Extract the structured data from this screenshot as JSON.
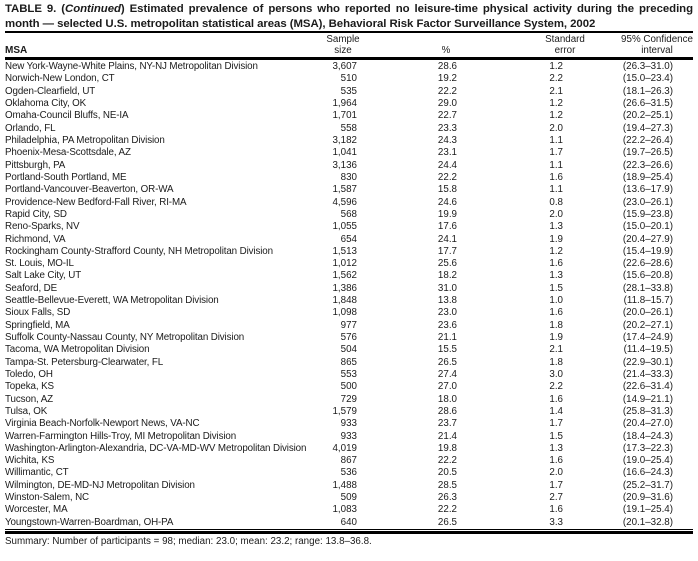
{
  "title": {
    "line1_prefix": "TABLE 9. (",
    "line1_continued": "Continued",
    "line1_rest": ") Estimated prevalence of persons who reported no leisure-time physical activity during the preceding",
    "line2": "month — selected U.S. metropolitan statistical areas (MSA), Behavioral Risk Factor Surveillance System, 2002"
  },
  "header": {
    "msa": "MSA",
    "sample_line1": "Sample",
    "sample_line2": "size",
    "pct": "%",
    "se_line1": "Standard",
    "se_line2": "error",
    "ci_line1": "95% Confidence",
    "ci_line2": "interval"
  },
  "table": {
    "rows": [
      {
        "msa": "New York-Wayne-White Plains, NY-NJ Metropolitan Division",
        "sample": "3,607",
        "pct": "28.6",
        "se": "1.2",
        "ci": "(26.3–31.0)"
      },
      {
        "msa": "Norwich-New London, CT",
        "sample": "510",
        "pct": "19.2",
        "se": "2.2",
        "ci": "(15.0–23.4)"
      },
      {
        "msa": "Ogden-Clearfield, UT",
        "sample": "535",
        "pct": "22.2",
        "se": "2.1",
        "ci": "(18.1–26.3)"
      },
      {
        "msa": "Oklahoma City, OK",
        "sample": "1,964",
        "pct": "29.0",
        "se": "1.2",
        "ci": "(26.6–31.5)"
      },
      {
        "msa": "Omaha-Council Bluffs, NE-IA",
        "sample": "1,701",
        "pct": "22.7",
        "se": "1.2",
        "ci": "(20.2–25.1)"
      },
      {
        "msa": "Orlando, FL",
        "sample": "558",
        "pct": "23.3",
        "se": "2.0",
        "ci": "(19.4–27.3)"
      },
      {
        "msa": "Philadelphia, PA Metropolitan Division",
        "sample": "3,182",
        "pct": "24.3",
        "se": "1.1",
        "ci": "(22.2–26.4)"
      },
      {
        "msa": "Phoenix-Mesa-Scottsdale, AZ",
        "sample": "1,041",
        "pct": "23.1",
        "se": "1.7",
        "ci": "(19.7–26.5)"
      },
      {
        "msa": "Pittsburgh, PA",
        "sample": "3,136",
        "pct": "24.4",
        "se": "1.1",
        "ci": "(22.3–26.6)"
      },
      {
        "msa": "Portland-South Portland, ME",
        "sample": "830",
        "pct": "22.2",
        "se": "1.6",
        "ci": "(18.9–25.4)"
      },
      {
        "msa": "Portland-Vancouver-Beaverton, OR-WA",
        "sample": "1,587",
        "pct": "15.8",
        "se": "1.1",
        "ci": "(13.6–17.9)"
      },
      {
        "msa": "Providence-New Bedford-Fall River, RI-MA",
        "sample": "4,596",
        "pct": "24.6",
        "se": "0.8",
        "ci": "(23.0–26.1)"
      },
      {
        "msa": "Rapid City, SD",
        "sample": "568",
        "pct": "19.9",
        "se": "2.0",
        "ci": "(15.9–23.8)"
      },
      {
        "msa": "Reno-Sparks, NV",
        "sample": "1,055",
        "pct": "17.6",
        "se": "1.3",
        "ci": "(15.0–20.1)"
      },
      {
        "msa": "Richmond, VA",
        "sample": "654",
        "pct": "24.1",
        "se": "1.9",
        "ci": "(20.4–27.9)"
      },
      {
        "msa": "Rockingham County-Strafford County, NH Metropolitan Division",
        "sample": "1,513",
        "pct": "17.7",
        "se": "1.2",
        "ci": "(15.4–19.9)"
      },
      {
        "msa": "St. Louis, MO-IL",
        "sample": "1,012",
        "pct": "25.6",
        "se": "1.6",
        "ci": "(22.6–28.6)"
      },
      {
        "msa": "Salt Lake City, UT",
        "sample": "1,562",
        "pct": "18.2",
        "se": "1.3",
        "ci": "(15.6–20.8)"
      },
      {
        "msa": "Seaford, DE",
        "sample": "1,386",
        "pct": "31.0",
        "se": "1.5",
        "ci": "(28.1–33.8)"
      },
      {
        "msa": "Seattle-Bellevue-Everett, WA Metropolitan Division",
        "sample": "1,848",
        "pct": "13.8",
        "se": "1.0",
        "ci": "(11.8–15.7)"
      },
      {
        "msa": "Sioux Falls, SD",
        "sample": "1,098",
        "pct": "23.0",
        "se": "1.6",
        "ci": "(20.0–26.1)"
      },
      {
        "msa": "Springfield, MA",
        "sample": "977",
        "pct": "23.6",
        "se": "1.8",
        "ci": "(20.2–27.1)"
      },
      {
        "msa": "Suffolk County-Nassau County, NY Metropolitan Division",
        "sample": "576",
        "pct": "21.1",
        "se": "1.9",
        "ci": "(17.4–24.9)"
      },
      {
        "msa": "Tacoma, WA Metropolitan Division",
        "sample": "504",
        "pct": "15.5",
        "se": "2.1",
        "ci": "(11.4–19.5)"
      },
      {
        "msa": "Tampa-St. Petersburg-Clearwater, FL",
        "sample": "865",
        "pct": "26.5",
        "se": "1.8",
        "ci": "(22.9–30.1)"
      },
      {
        "msa": "Toledo, OH",
        "sample": "553",
        "pct": "27.4",
        "se": "3.0",
        "ci": "(21.4–33.3)"
      },
      {
        "msa": "Topeka, KS",
        "sample": "500",
        "pct": "27.0",
        "se": "2.2",
        "ci": "(22.6–31.4)"
      },
      {
        "msa": "Tucson, AZ",
        "sample": "729",
        "pct": "18.0",
        "se": "1.6",
        "ci": "(14.9–21.1)"
      },
      {
        "msa": "Tulsa, OK",
        "sample": "1,579",
        "pct": "28.6",
        "se": "1.4",
        "ci": "(25.8–31.3)"
      },
      {
        "msa": "Virginia Beach-Norfolk-Newport News, VA-NC",
        "sample": "933",
        "pct": "23.7",
        "se": "1.7",
        "ci": "(20.4–27.0)"
      },
      {
        "msa": "Warren-Farmington Hills-Troy, MI Metropolitan Division",
        "sample": "933",
        "pct": "21.4",
        "se": "1.5",
        "ci": "(18.4–24.3)"
      },
      {
        "msa": "Washington-Arlington-Alexandria, DC-VA-MD-WV Metropolitan Division",
        "sample": "4,019",
        "pct": "19.8",
        "se": "1.3",
        "ci": "(17.3–22.3)"
      },
      {
        "msa": "Wichita, KS",
        "sample": "867",
        "pct": "22.2",
        "se": "1.6",
        "ci": "(19.0–25.4)"
      },
      {
        "msa": "Willimantic, CT",
        "sample": "536",
        "pct": "20.5",
        "se": "2.0",
        "ci": "(16.6–24.3)"
      },
      {
        "msa": "Wilmington, DE-MD-NJ Metropolitan Division",
        "sample": "1,488",
        "pct": "28.5",
        "se": "1.7",
        "ci": "(25.2–31.7)"
      },
      {
        "msa": "Winston-Salem, NC",
        "sample": "509",
        "pct": "26.3",
        "se": "2.7",
        "ci": "(20.9–31.6)"
      },
      {
        "msa": "Worcester, MA",
        "sample": "1,083",
        "pct": "22.2",
        "se": "1.6",
        "ci": "(19.1–25.4)"
      },
      {
        "msa": "Youngstown-Warren-Boardman, OH-PA",
        "sample": "640",
        "pct": "26.5",
        "se": "3.3",
        "ci": "(20.1–32.8)"
      }
    ]
  },
  "summary": "Summary: Number of participants = 98; median: 23.0; mean: 23.2; range: 13.8–36.8."
}
